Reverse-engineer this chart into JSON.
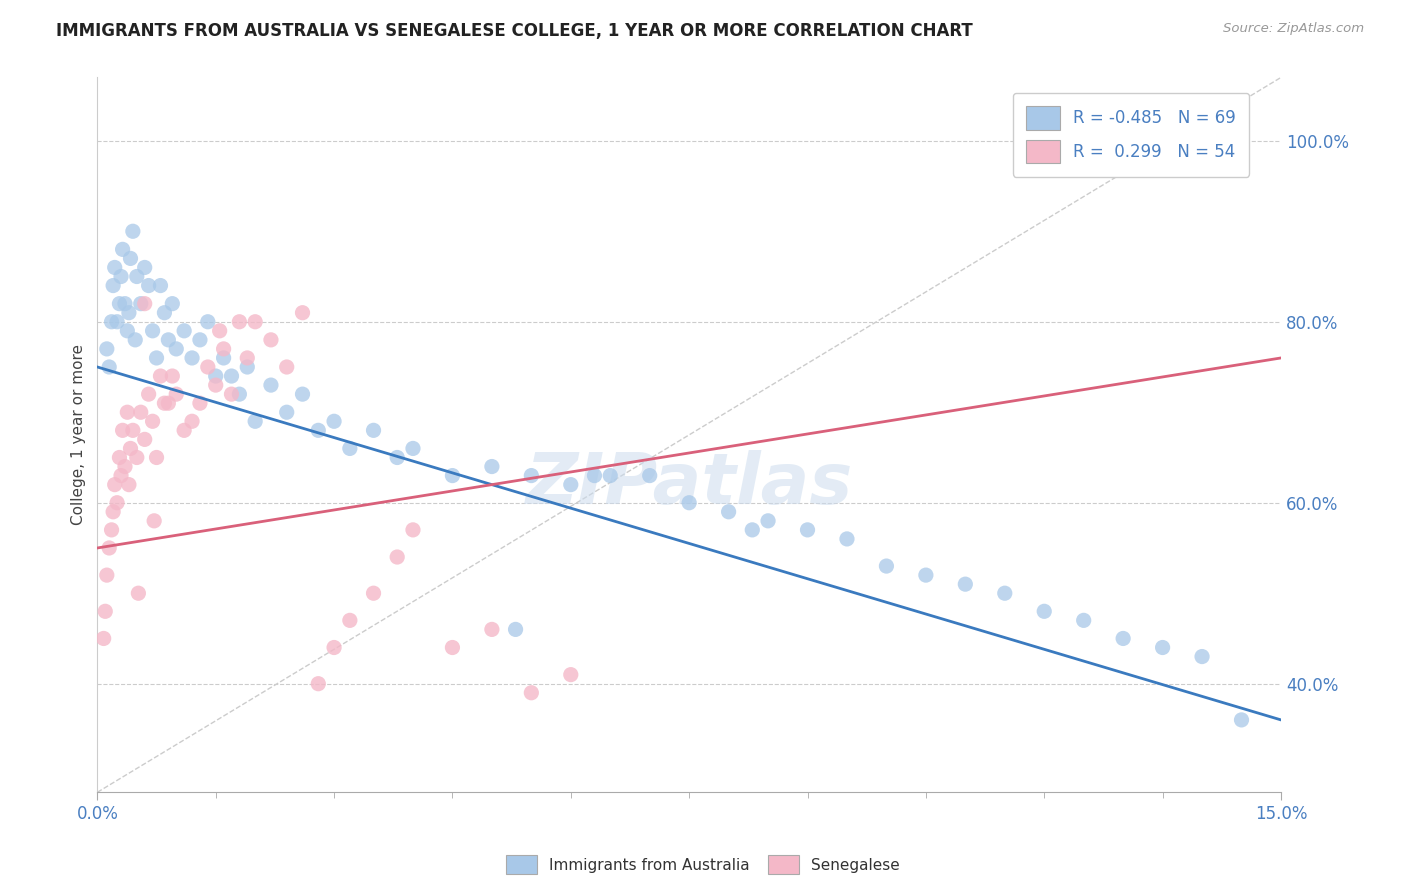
{
  "title": "IMMIGRANTS FROM AUSTRALIA VS SENEGALESE COLLEGE, 1 YEAR OR MORE CORRELATION CHART",
  "source_text": "Source: ZipAtlas.com",
  "ylabel": "College, 1 year or more",
  "xmin": 0.0,
  "xmax": 15.0,
  "ymin": 28.0,
  "ymax": 107.0,
  "ytick_values": [
    40,
    60,
    80,
    100
  ],
  "legend_blue_label": "R = -0.485   N = 69",
  "legend_pink_label": "R =  0.299   N = 54",
  "blue_color": "#a8c8e8",
  "pink_color": "#f4b8c8",
  "blue_line_color": "#3a7abf",
  "pink_line_color": "#d9607a",
  "blue_trend_x": [
    0.0,
    15.0
  ],
  "blue_trend_y": [
    75.0,
    36.0
  ],
  "pink_trend_x": [
    0.0,
    15.0
  ],
  "pink_trend_y": [
    55.0,
    76.0
  ],
  "ref_line_x": [
    0.0,
    15.0
  ],
  "ref_line_y": [
    28.0,
    107.0
  ],
  "blue_scatter_x": [
    0.12,
    0.15,
    0.18,
    0.2,
    0.22,
    0.25,
    0.28,
    0.3,
    0.32,
    0.35,
    0.38,
    0.4,
    0.42,
    0.45,
    0.48,
    0.5,
    0.55,
    0.6,
    0.65,
    0.7,
    0.75,
    0.8,
    0.85,
    0.9,
    0.95,
    1.0,
    1.1,
    1.2,
    1.3,
    1.4,
    1.5,
    1.6,
    1.7,
    1.8,
    1.9,
    2.0,
    2.2,
    2.4,
    2.6,
    2.8,
    3.0,
    3.2,
    3.5,
    3.8,
    4.0,
    4.5,
    5.0,
    5.5,
    6.0,
    6.5,
    7.0,
    7.5,
    8.0,
    8.5,
    9.0,
    9.5,
    10.0,
    10.5,
    11.0,
    11.5,
    12.0,
    12.5,
    13.0,
    13.5,
    14.0,
    14.5,
    6.3,
    8.3,
    5.3
  ],
  "blue_scatter_y": [
    77,
    75,
    80,
    84,
    86,
    80,
    82,
    85,
    88,
    82,
    79,
    81,
    87,
    90,
    78,
    85,
    82,
    86,
    84,
    79,
    76,
    84,
    81,
    78,
    82,
    77,
    79,
    76,
    78,
    80,
    74,
    76,
    74,
    72,
    75,
    69,
    73,
    70,
    72,
    68,
    69,
    66,
    68,
    65,
    66,
    63,
    64,
    63,
    62,
    63,
    63,
    60,
    59,
    58,
    57,
    56,
    53,
    52,
    51,
    50,
    48,
    47,
    45,
    44,
    43,
    36,
    63,
    57,
    46
  ],
  "pink_scatter_x": [
    0.08,
    0.1,
    0.12,
    0.15,
    0.18,
    0.2,
    0.22,
    0.25,
    0.28,
    0.3,
    0.32,
    0.35,
    0.38,
    0.4,
    0.42,
    0.45,
    0.5,
    0.55,
    0.6,
    0.65,
    0.7,
    0.75,
    0.8,
    0.85,
    0.9,
    0.95,
    1.0,
    1.1,
    1.2,
    1.3,
    1.4,
    1.5,
    1.6,
    1.7,
    1.8,
    1.9,
    2.0,
    2.2,
    2.4,
    2.6,
    2.8,
    3.0,
    3.2,
    3.5,
    3.8,
    4.0,
    4.5,
    5.0,
    5.5,
    6.0,
    1.55,
    0.6,
    0.72,
    0.52
  ],
  "pink_scatter_y": [
    45,
    48,
    52,
    55,
    57,
    59,
    62,
    60,
    65,
    63,
    68,
    64,
    70,
    62,
    66,
    68,
    65,
    70,
    67,
    72,
    69,
    65,
    74,
    71,
    71,
    74,
    72,
    68,
    69,
    71,
    75,
    73,
    77,
    72,
    80,
    76,
    80,
    78,
    75,
    81,
    40,
    44,
    47,
    50,
    54,
    57,
    44,
    46,
    39,
    41,
    79,
    82,
    58,
    50
  ]
}
